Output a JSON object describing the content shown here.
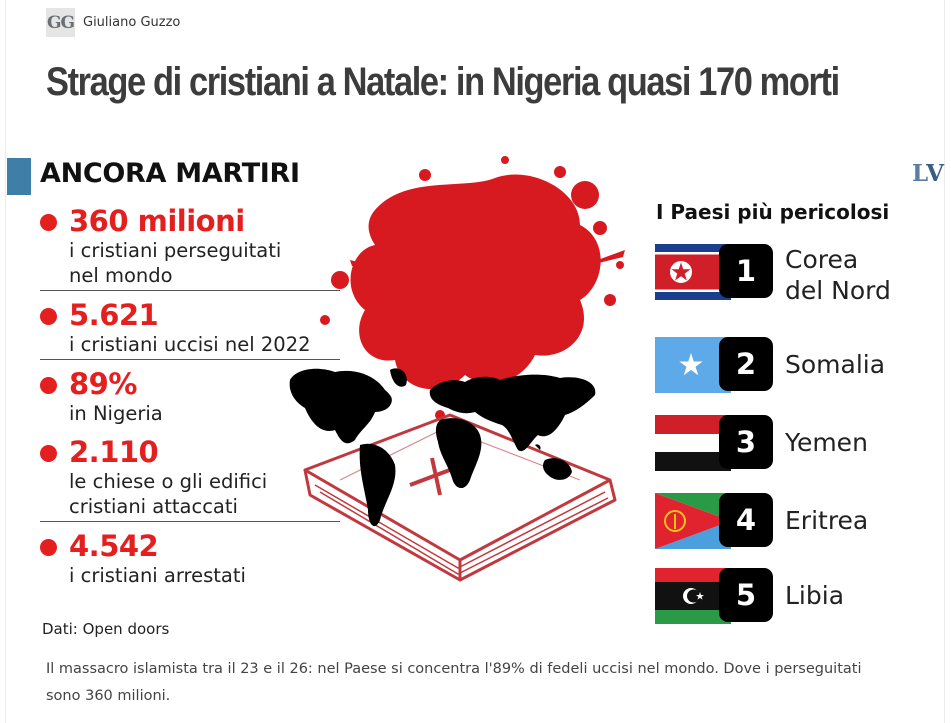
{
  "byline": {
    "logo": "GG",
    "author": "Giuliano Guzzo"
  },
  "headline": "Strage di cristiani a Natale: in Nigeria quasi 170 morti",
  "infographic": {
    "title": "ANCORA MARTIRI",
    "brand_logo": {
      "first": "L",
      "second": "V"
    },
    "stats": [
      {
        "value": "360 milioni",
        "desc": "i cristiani perseguitati\nnel mondo"
      },
      {
        "value": "5.621",
        "desc": "i cristiani uccisi nel 2022"
      },
      {
        "value": "89%",
        "desc": "in Nigeria"
      },
      {
        "value": "2.110",
        "desc": "le chiese o gli edifici\ncristiani attaccati"
      },
      {
        "value": "4.542",
        "desc": "i cristiani arrestati"
      }
    ],
    "source": "Dati: Open doors",
    "countries_title": "I Paesi più pericolosi",
    "countries": [
      {
        "rank": "1",
        "name": "Corea\ndel Nord",
        "flag": "north-korea"
      },
      {
        "rank": "2",
        "name": "Somalia",
        "flag": "somalia"
      },
      {
        "rank": "3",
        "name": "Yemen",
        "flag": "yemen"
      },
      {
        "rank": "4",
        "name": "Eritrea",
        "flag": "eritrea"
      },
      {
        "rank": "5",
        "name": "Libia",
        "flag": "libya"
      }
    ],
    "colors": {
      "accent_red": "#e41f1f",
      "accent_blue": "#3f7ea6",
      "blood": "#d61a1f",
      "book_line": "#c0393e"
    }
  },
  "caption": "Il massacro islamista tra il 23 e il 26: nel Paese si concentra l'89% di fedeli uccisi nel mondo. Dove i perseguitati sono 360 milioni."
}
